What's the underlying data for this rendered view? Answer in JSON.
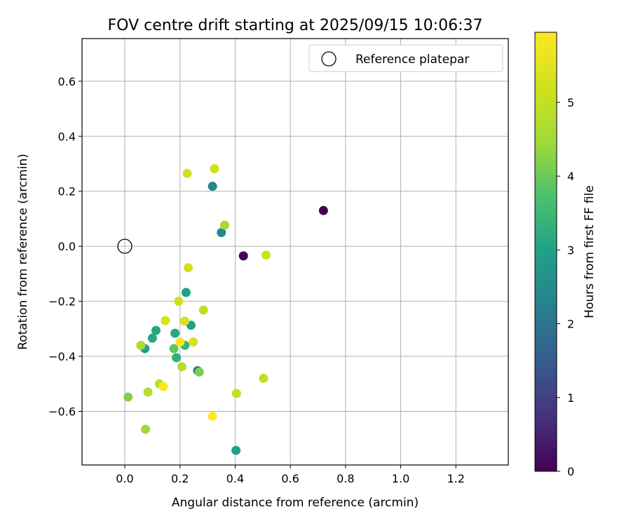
{
  "chart_data": {
    "type": "scatter",
    "title": "FOV centre drift starting at 2025/09/15 10:06:37",
    "xlabel": "Angular distance from reference (arcmin)",
    "ylabel": "Rotation from reference (arcmin)",
    "xlim": [
      -0.155,
      1.39
    ],
    "ylim": [
      -0.795,
      0.755
    ],
    "xticks": [
      0.0,
      0.2,
      0.4,
      0.6,
      0.8,
      1.0,
      1.2
    ],
    "xtick_labels": [
      "0.0",
      "0.2",
      "0.4",
      "0.6",
      "0.8",
      "1.0",
      "1.2"
    ],
    "yticks": [
      -0.6,
      -0.4,
      -0.2,
      0.0,
      0.2,
      0.4,
      0.6
    ],
    "ytick_labels": [
      "−0.6",
      "−0.4",
      "−0.2",
      "0.0",
      "0.2",
      "0.4",
      "0.6"
    ],
    "grid": true,
    "legend": {
      "placement": "top-right",
      "label": "Reference platepar"
    },
    "reference_point": {
      "x": 0.0,
      "y": 0.0
    },
    "colorbar": {
      "label": "Hours from first FF file",
      "range": [
        0,
        5.95
      ],
      "ticks": [
        0,
        1,
        2,
        3,
        4,
        5
      ],
      "tick_labels": [
        "0",
        "1",
        "2",
        "3",
        "4",
        "5"
      ],
      "colormap": "viridis"
    },
    "points": [
      {
        "x": 0.72,
        "y": 0.13,
        "hours": 0.0
      },
      {
        "x": 0.43,
        "y": -0.035,
        "hours": 0.05
      },
      {
        "x": 0.318,
        "y": 0.218,
        "hours": 2.4
      },
      {
        "x": 0.35,
        "y": 0.05,
        "hours": 2.5
      },
      {
        "x": 0.264,
        "y": -0.452,
        "hours": 2.2
      },
      {
        "x": 0.222,
        "y": -0.168,
        "hours": 3.0
      },
      {
        "x": 0.24,
        "y": -0.287,
        "hours": 3.0
      },
      {
        "x": 0.182,
        "y": -0.316,
        "hours": 3.1
      },
      {
        "x": 0.113,
        "y": -0.306,
        "hours": 3.1
      },
      {
        "x": 0.1,
        "y": -0.334,
        "hours": 3.1
      },
      {
        "x": 0.073,
        "y": -0.372,
        "hours": 3.0
      },
      {
        "x": 0.187,
        "y": -0.405,
        "hours": 3.3
      },
      {
        "x": 0.218,
        "y": -0.36,
        "hours": 3.4
      },
      {
        "x": 0.403,
        "y": -0.742,
        "hours": 3.0
      },
      {
        "x": 0.178,
        "y": -0.372,
        "hours": 3.9
      },
      {
        "x": 0.27,
        "y": -0.457,
        "hours": 4.1
      },
      {
        "x": 0.012,
        "y": -0.548,
        "hours": 4.2
      },
      {
        "x": 0.362,
        "y": 0.077,
        "hours": 4.5
      },
      {
        "x": 0.075,
        "y": -0.665,
        "hours": 4.5
      },
      {
        "x": 0.058,
        "y": -0.36,
        "hours": 4.7
      },
      {
        "x": 0.207,
        "y": -0.438,
        "hours": 4.8
      },
      {
        "x": 0.084,
        "y": -0.53,
        "hours": 4.8
      },
      {
        "x": 0.125,
        "y": -0.5,
        "hours": 4.9
      },
      {
        "x": 0.285,
        "y": -0.232,
        "hours": 5.0
      },
      {
        "x": 0.405,
        "y": -0.535,
        "hours": 5.0
      },
      {
        "x": 0.503,
        "y": -0.48,
        "hours": 5.0
      },
      {
        "x": 0.325,
        "y": 0.282,
        "hours": 5.2
      },
      {
        "x": 0.226,
        "y": 0.265,
        "hours": 5.2
      },
      {
        "x": 0.23,
        "y": -0.078,
        "hours": 5.2
      },
      {
        "x": 0.512,
        "y": -0.032,
        "hours": 5.2
      },
      {
        "x": 0.195,
        "y": -0.2,
        "hours": 5.2
      },
      {
        "x": 0.147,
        "y": -0.27,
        "hours": 5.3
      },
      {
        "x": 0.217,
        "y": -0.272,
        "hours": 5.3
      },
      {
        "x": 0.248,
        "y": -0.348,
        "hours": 5.3
      },
      {
        "x": 0.2,
        "y": -0.348,
        "hours": 5.95
      },
      {
        "x": 0.14,
        "y": -0.51,
        "hours": 5.9
      },
      {
        "x": 0.318,
        "y": -0.618,
        "hours": 5.95
      }
    ]
  }
}
